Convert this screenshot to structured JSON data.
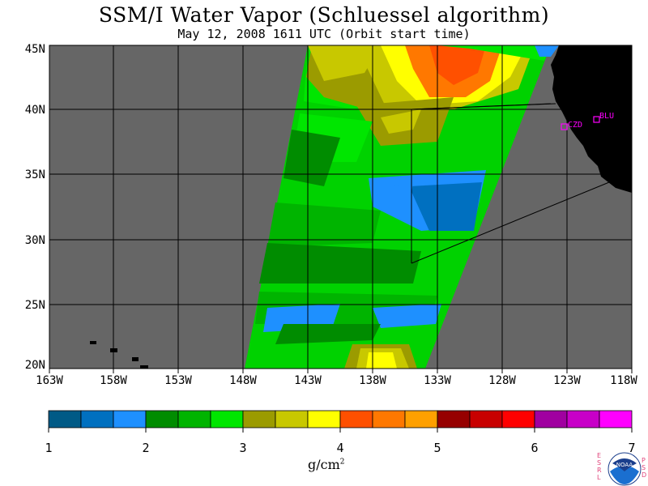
{
  "title": "SSM/I Water Vapor (Schluessel algorithm)",
  "subtitle": "May 12, 2008  1611 UTC  (Orbit start time)",
  "map": {
    "lat_labels": [
      "45N",
      "40N",
      "35N",
      "30N",
      "25N",
      "20N"
    ],
    "lon_labels": [
      "163W",
      "158W",
      "153W",
      "148W",
      "143W",
      "138W",
      "133W",
      "128W",
      "123W",
      "118W"
    ],
    "stations": [
      {
        "id": "CZD",
        "label": "CZD"
      },
      {
        "id": "BLU",
        "label": "BLU"
      }
    ],
    "colors": {
      "no_data": "#666666",
      "land": "#000000",
      "grid": "#000000",
      "station": "#ff00ff"
    }
  },
  "colorbar": {
    "ticks": [
      "1",
      "2",
      "3",
      "4",
      "5",
      "6",
      "7"
    ],
    "units": "g/cm",
    "units_sup": "2",
    "colors": [
      "#005a86",
      "#0070c0",
      "#1e90ff",
      "#008c00",
      "#00b400",
      "#00e600",
      "#9b9b00",
      "#c8c800",
      "#ffff00",
      "#ff5000",
      "#ff7800",
      "#ffa000",
      "#960000",
      "#c80000",
      "#ff0000",
      "#a000a0",
      "#c800c8",
      "#ff00ff"
    ]
  },
  "logo": {
    "left_letters": "E S R L",
    "right_letters": "P S D",
    "center_text": "NOAA"
  }
}
